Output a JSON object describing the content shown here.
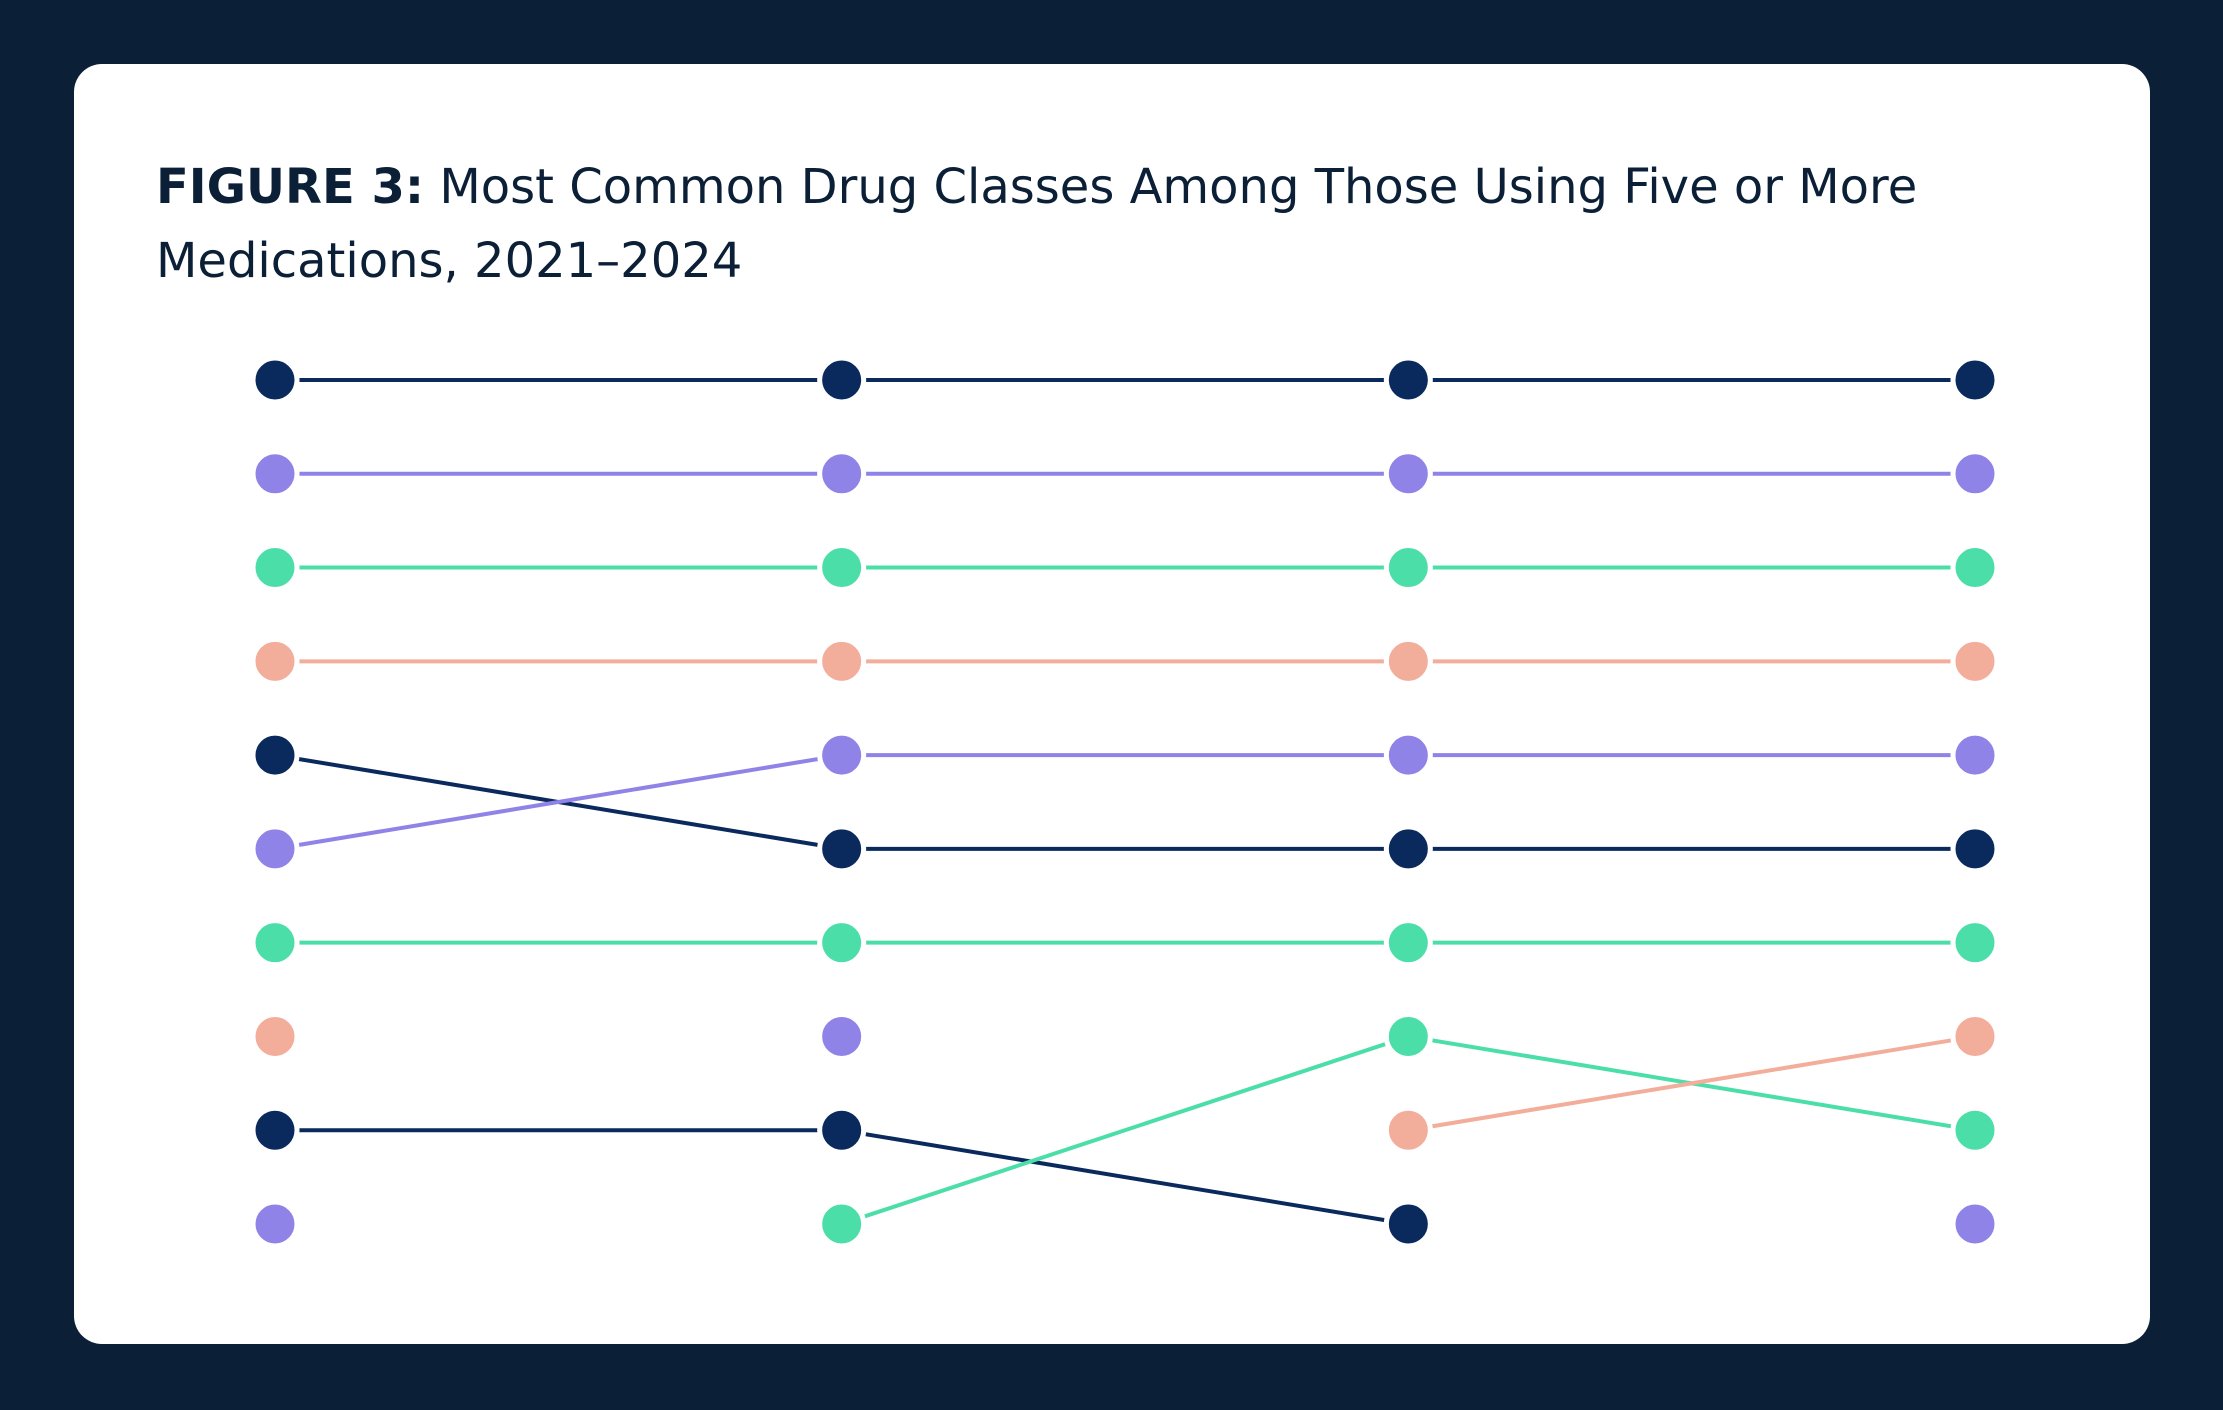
{
  "chart_data": {
    "type": "bump",
    "title_label": "FIGURE 3:",
    "title": "Most Common Drug Classes Among Those Using Five or More Medications, 2021–2024",
    "categories": [
      null,
      null,
      null,
      null
    ],
    "ylim": [
      10,
      1
    ],
    "series": [
      {
        "color": "#0a2a5e",
        "values": [
          1,
          1,
          1,
          1
        ]
      },
      {
        "color": "#8f83e8",
        "values": [
          2,
          2,
          2,
          2
        ]
      },
      {
        "color": "#4cdea9",
        "values": [
          3,
          3,
          3,
          3
        ]
      },
      {
        "color": "#f2ad9b",
        "values": [
          4,
          4,
          4,
          4
        ]
      },
      {
        "color": "#0a2a5e",
        "values": [
          5,
          6,
          6,
          6
        ]
      },
      {
        "color": "#8f83e8",
        "values": [
          6,
          5,
          5,
          5
        ]
      },
      {
        "color": "#4cdea9",
        "values": [
          7,
          7,
          7,
          7
        ]
      },
      {
        "color": "#f2ad9b",
        "values": [
          8,
          null,
          null,
          null
        ]
      },
      {
        "color": "#0a2a5e",
        "values": [
          9,
          9,
          10,
          null
        ]
      },
      {
        "color": "#8f83e8",
        "values": [
          10,
          null,
          null,
          null
        ]
      },
      {
        "color": "#8f83e8",
        "values": [
          null,
          8,
          null,
          null
        ]
      },
      {
        "color": "#4cdea9",
        "values": [
          null,
          10,
          8,
          9
        ]
      },
      {
        "color": "#f2ad9b",
        "values": [
          null,
          null,
          9,
          8
        ]
      },
      {
        "color": "#8f83e8",
        "values": [
          null,
          null,
          null,
          10
        ]
      }
    ]
  }
}
